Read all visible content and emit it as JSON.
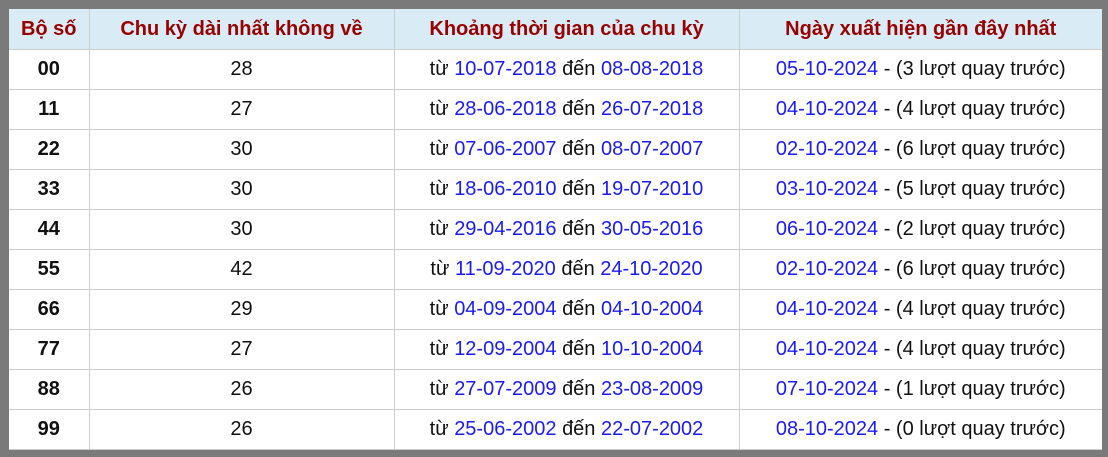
{
  "headers": [
    "Bộ số",
    "Chu kỳ dài nhất không về",
    "Khoảng thời gian của chu kỳ",
    "Ngày xuất hiện gần đây nhất"
  ],
  "words": {
    "from": "từ",
    "to": "đến",
    "sep": " - ",
    "suffix": "lượt quay trước"
  },
  "rows": [
    {
      "num": "00",
      "cycle": "28",
      "start": "10-07-2018",
      "end": "08-08-2018",
      "last": "05-10-2024",
      "ago": "3"
    },
    {
      "num": "11",
      "cycle": "27",
      "start": "28-06-2018",
      "end": "26-07-2018",
      "last": "04-10-2024",
      "ago": "4"
    },
    {
      "num": "22",
      "cycle": "30",
      "start": "07-06-2007",
      "end": "08-07-2007",
      "last": "02-10-2024",
      "ago": "6"
    },
    {
      "num": "33",
      "cycle": "30",
      "start": "18-06-2010",
      "end": "19-07-2010",
      "last": "03-10-2024",
      "ago": "5"
    },
    {
      "num": "44",
      "cycle": "30",
      "start": "29-04-2016",
      "end": "30-05-2016",
      "last": "06-10-2024",
      "ago": "2"
    },
    {
      "num": "55",
      "cycle": "42",
      "start": "11-09-2020",
      "end": "24-10-2020",
      "last": "02-10-2024",
      "ago": "6"
    },
    {
      "num": "66",
      "cycle": "29",
      "start": "04-09-2004",
      "end": "04-10-2004",
      "last": "04-10-2024",
      "ago": "4"
    },
    {
      "num": "77",
      "cycle": "27",
      "start": "12-09-2004",
      "end": "10-10-2004",
      "last": "04-10-2024",
      "ago": "4"
    },
    {
      "num": "88",
      "cycle": "26",
      "start": "27-07-2009",
      "end": "23-08-2009",
      "last": "07-10-2024",
      "ago": "1"
    },
    {
      "num": "99",
      "cycle": "26",
      "start": "25-06-2002",
      "end": "22-07-2002",
      "last": "08-10-2024",
      "ago": "0"
    }
  ]
}
